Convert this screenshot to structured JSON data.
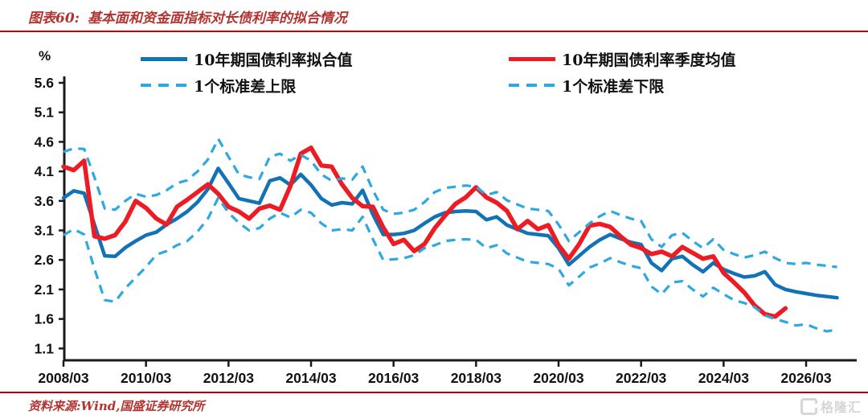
{
  "header": {
    "tag": "图表60:",
    "title": "基本面和资金面指标对长债利率的拟合情况"
  },
  "footer": {
    "source": "资料来源:Wind,国盛证券研究所"
  },
  "watermark": {
    "text": "格隆汇",
    "logo": "gelonghui-logo"
  },
  "unit_label": "%",
  "colors": {
    "fitted_blue": "#1272b6",
    "actual_red": "#ed1c24",
    "band_dashed_blue": "#2ea8e0",
    "axis": "#1a1a1a",
    "title_red": "#b23431",
    "rule_red": "#c00000"
  },
  "chart_data": {
    "type": "line",
    "title": "基本面和资金面指标对长债利率的拟合情况",
    "ylabel": "%",
    "ylim": [
      1.1,
      5.6
    ],
    "yticks": [
      "5.6",
      "5.1",
      "4.6",
      "4.1",
      "3.6",
      "3.1",
      "2.6",
      "2.1",
      "1.6",
      "1.1"
    ],
    "x_start_quarter": "2008Q1",
    "x_frequency": "quarterly",
    "x_tick_labels": [
      "2008/03",
      "2010/03",
      "2012/03",
      "2014/03",
      "2016/03",
      "2018/03",
      "2020/03",
      "2022/03",
      "2024/03",
      "2026/03"
    ],
    "x_tick_indices": [
      0,
      8,
      16,
      24,
      32,
      40,
      48,
      56,
      64,
      72
    ],
    "grid": false,
    "legend_position": "top",
    "series": [
      {
        "name": "10年期国债利率拟合值",
        "style": "solid",
        "color": "#1272b6",
        "width": 4.5,
        "values": [
          3.65,
          3.77,
          3.73,
          3.2,
          2.67,
          2.66,
          2.81,
          2.92,
          3.02,
          3.07,
          3.2,
          3.3,
          3.42,
          3.58,
          3.8,
          4.15,
          3.9,
          3.64,
          3.6,
          3.56,
          3.94,
          3.99,
          3.87,
          4.05,
          3.87,
          3.64,
          3.53,
          3.57,
          3.55,
          3.78,
          3.37,
          3.03,
          3.03,
          3.05,
          3.1,
          3.22,
          3.33,
          3.4,
          3.42,
          3.43,
          3.42,
          3.28,
          3.33,
          3.19,
          3.12,
          3.05,
          3.03,
          3.01,
          2.8,
          2.52,
          2.67,
          2.82,
          2.94,
          3.03,
          2.96,
          2.9,
          2.86,
          2.55,
          2.42,
          2.62,
          2.66,
          2.52,
          2.4,
          2.55,
          2.44,
          2.37,
          2.31,
          2.33,
          2.4,
          2.18,
          2.1,
          2.06,
          2.03,
          2.0,
          1.98,
          1.96
        ]
      },
      {
        "name": "10年期国债利率季度均值",
        "style": "solid",
        "color": "#ed1c24",
        "width": 5.5,
        "values": [
          4.18,
          4.12,
          4.28,
          3.0,
          2.96,
          3.02,
          3.25,
          3.6,
          3.48,
          3.3,
          3.2,
          3.5,
          3.62,
          3.75,
          3.88,
          3.72,
          3.5,
          3.42,
          3.3,
          3.47,
          3.52,
          3.45,
          3.85,
          4.4,
          4.5,
          4.2,
          4.18,
          3.88,
          3.65,
          3.51,
          3.5,
          3.15,
          2.87,
          2.94,
          2.75,
          2.87,
          3.14,
          3.35,
          3.55,
          3.66,
          3.83,
          3.66,
          3.57,
          3.43,
          3.12,
          3.26,
          3.12,
          3.19,
          2.85,
          2.62,
          2.87,
          3.18,
          3.21,
          3.16,
          3.0,
          2.86,
          2.8,
          2.7,
          2.74,
          2.66,
          2.82,
          2.72,
          2.62,
          2.66,
          2.38,
          2.22,
          2.05,
          1.83,
          1.68,
          1.64,
          1.78
        ]
      },
      {
        "name": "1个标准差上限",
        "style": "dashed",
        "color": "#2ea8e0",
        "width": 3.2,
        "values": [
          4.43,
          4.49,
          4.48,
          4.0,
          3.47,
          3.45,
          3.6,
          3.72,
          3.67,
          3.7,
          3.78,
          3.9,
          3.95,
          4.1,
          4.3,
          4.65,
          4.35,
          4.05,
          4.0,
          3.97,
          4.35,
          4.4,
          4.28,
          4.38,
          4.28,
          4.05,
          3.94,
          3.98,
          3.96,
          4.18,
          3.78,
          3.45,
          3.38,
          3.4,
          3.45,
          3.58,
          3.75,
          3.82,
          3.84,
          3.86,
          3.84,
          3.7,
          3.75,
          3.61,
          3.54,
          3.47,
          3.45,
          3.43,
          3.2,
          2.92,
          3.07,
          3.22,
          3.34,
          3.43,
          3.36,
          3.3,
          3.26,
          2.95,
          2.82,
          3.02,
          3.06,
          2.92,
          2.8,
          2.95,
          2.77,
          2.7,
          2.64,
          2.68,
          2.74,
          2.63,
          2.55,
          2.53,
          2.55,
          2.52,
          2.5,
          2.48
        ]
      },
      {
        "name": "1个标准差下限",
        "style": "dashed",
        "color": "#2ea8e0",
        "width": 3.2,
        "values": [
          3.02,
          3.12,
          3.03,
          2.45,
          1.92,
          1.89,
          2.12,
          2.3,
          2.48,
          2.69,
          2.75,
          2.85,
          2.92,
          3.08,
          3.3,
          3.65,
          3.4,
          3.23,
          3.1,
          3.14,
          3.3,
          3.4,
          3.32,
          3.45,
          3.4,
          3.22,
          3.1,
          3.12,
          3.1,
          3.33,
          2.95,
          2.6,
          2.61,
          2.63,
          2.68,
          2.8,
          2.85,
          2.92,
          2.94,
          2.95,
          2.94,
          2.8,
          2.85,
          2.71,
          2.64,
          2.57,
          2.55,
          2.53,
          2.45,
          2.17,
          2.32,
          2.47,
          2.54,
          2.63,
          2.56,
          2.5,
          2.46,
          2.15,
          2.02,
          2.22,
          2.24,
          2.1,
          1.98,
          2.13,
          2.02,
          1.92,
          1.87,
          1.8,
          1.66,
          1.6,
          1.55,
          1.49,
          1.51,
          1.44,
          1.39,
          1.42
        ]
      }
    ]
  },
  "legend": {
    "items": [
      {
        "label": "10年期国债利率拟合值",
        "swatch": "blue-solid-line"
      },
      {
        "label": "10年期国债利率季度均值",
        "swatch": "red-solid-line"
      },
      {
        "label": "1个标准差上限",
        "swatch": "lightblue-dashed-line"
      },
      {
        "label": "1个标准差下限",
        "swatch": "lightblue-dashed-line"
      }
    ]
  }
}
